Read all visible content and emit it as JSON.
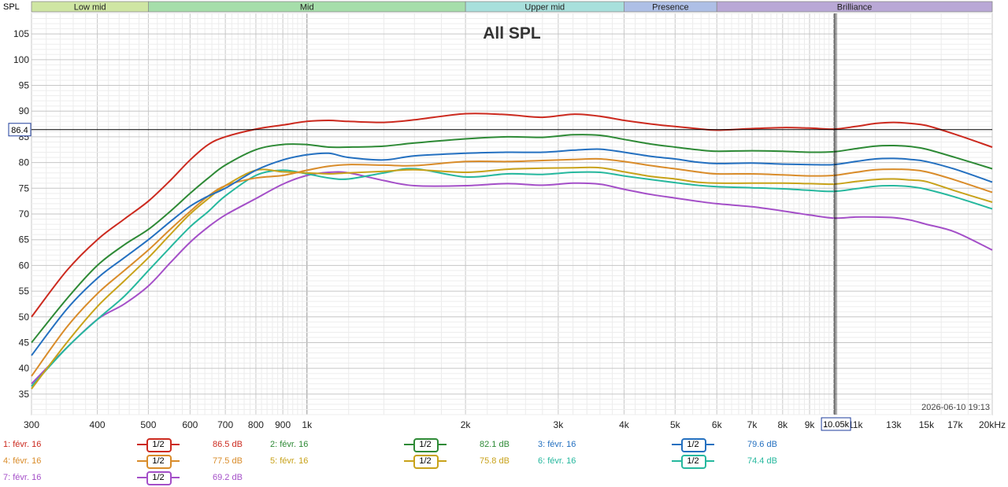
{
  "chart_data": {
    "type": "line",
    "title": "All SPL",
    "ylabel": "SPL",
    "x_scale": "log",
    "xlim": [
      300,
      20000
    ],
    "ylim": [
      31,
      109
    ],
    "y_ticks": [
      35,
      40,
      45,
      50,
      55,
      60,
      65,
      70,
      75,
      80,
      85,
      90,
      95,
      100,
      105
    ],
    "x_ticks": [
      {
        "v": 300,
        "label": "300"
      },
      {
        "v": 400,
        "label": "400"
      },
      {
        "v": 500,
        "label": "500"
      },
      {
        "v": 600,
        "label": "600"
      },
      {
        "v": 700,
        "label": "700"
      },
      {
        "v": 800,
        "label": "800"
      },
      {
        "v": 900,
        "label": "900"
      },
      {
        "v": 1000,
        "label": "1k"
      },
      {
        "v": 2000,
        "label": "2k"
      },
      {
        "v": 3000,
        "label": "3k"
      },
      {
        "v": 4000,
        "label": "4k"
      },
      {
        "v": 5000,
        "label": "5k"
      },
      {
        "v": 6000,
        "label": "6k"
      },
      {
        "v": 7000,
        "label": "7k"
      },
      {
        "v": 8000,
        "label": "8k"
      },
      {
        "v": 9000,
        "label": "9k"
      },
      {
        "v": 11000,
        "label": "11k"
      },
      {
        "v": 13000,
        "label": "13k"
      },
      {
        "v": 15000,
        "label": "15k"
      },
      {
        "v": 17000,
        "label": "17k"
      },
      {
        "v": 20000,
        "label": "20kHz"
      }
    ],
    "bands": [
      {
        "name": "Low mid",
        "from": 300,
        "to": 500,
        "color": "#cfe6a3"
      },
      {
        "name": "Mid",
        "from": 500,
        "to": 2000,
        "color": "#a6deaa"
      },
      {
        "name": "Upper mid",
        "from": 2000,
        "to": 4000,
        "color": "#a8e0dc"
      },
      {
        "name": "Presence",
        "from": 4000,
        "to": 6000,
        "color": "#aebfe6"
      },
      {
        "name": "Brilliance",
        "from": 6000,
        "to": 20000,
        "color": "#b9a8d6"
      }
    ],
    "cursor": {
      "x": 10050,
      "x_label": "10.05k",
      "y": 86.4,
      "y_label": "86.4"
    },
    "timestamp": "2026-06-10 19:13",
    "series": [
      {
        "name": "1: févr. 16",
        "color": "#cc2a1f",
        "value_label": "86.5 dB",
        "smoothing": "1/2",
        "x": [
          300,
          350,
          400,
          450,
          500,
          550,
          600,
          650,
          700,
          800,
          900,
          1000,
          1100,
          1200,
          1400,
          1600,
          2000,
          2400,
          2800,
          3200,
          3600,
          4000,
          4500,
          5000,
          5500,
          6000,
          7000,
          8000,
          9000,
          10000,
          11000,
          12000,
          13000,
          14000,
          15000,
          17000,
          20000
        ],
        "y": [
          50,
          59,
          65,
          69,
          72.5,
          76.5,
          80.5,
          83.5,
          85,
          86.5,
          87.3,
          88,
          88.2,
          88,
          87.8,
          88.3,
          89.5,
          89.3,
          88.8,
          89.4,
          89,
          88.2,
          87.5,
          87,
          86.6,
          86.3,
          86.6,
          86.8,
          86.7,
          86.5,
          87,
          87.6,
          87.8,
          87.6,
          87.2,
          85.5,
          83
        ]
      },
      {
        "name": "2: févr. 16",
        "color": "#2e8a36",
        "value_label": "82.1 dB",
        "smoothing": "1/2",
        "x": [
          300,
          350,
          400,
          450,
          500,
          550,
          600,
          650,
          700,
          800,
          900,
          1000,
          1100,
          1200,
          1400,
          1600,
          2000,
          2400,
          2800,
          3200,
          3600,
          4000,
          4500,
          5000,
          5500,
          6000,
          7000,
          8000,
          9000,
          10000,
          11000,
          12000,
          13000,
          14000,
          15000,
          17000,
          20000
        ],
        "y": [
          45,
          53.5,
          60,
          64,
          67,
          70.5,
          74,
          77,
          79.5,
          82.5,
          83.5,
          83.5,
          83,
          83,
          83.2,
          83.8,
          84.6,
          85,
          84.9,
          85.4,
          85.3,
          84.5,
          83.6,
          83,
          82.5,
          82.2,
          82.3,
          82.2,
          82,
          82.1,
          82.7,
          83.2,
          83.3,
          83.1,
          82.6,
          81,
          78.8
        ]
      },
      {
        "name": "3: févr. 16",
        "color": "#2470c0",
        "value_label": "79.6 dB",
        "smoothing": "1/2",
        "x": [
          300,
          350,
          400,
          450,
          500,
          550,
          600,
          650,
          700,
          800,
          900,
          1000,
          1100,
          1200,
          1400,
          1600,
          2000,
          2400,
          2800,
          3200,
          3600,
          4000,
          4500,
          5000,
          5500,
          6000,
          7000,
          8000,
          9000,
          10000,
          11000,
          12000,
          13000,
          14000,
          15000,
          17000,
          20000
        ],
        "y": [
          42.5,
          51.5,
          57.5,
          61.5,
          65,
          68.5,
          71.5,
          73.5,
          75,
          78.5,
          80.5,
          81.5,
          81.8,
          81,
          80.5,
          81.3,
          81.8,
          82,
          82,
          82.4,
          82.6,
          82,
          81.2,
          80.7,
          80.1,
          79.8,
          79.9,
          79.7,
          79.6,
          79.6,
          80.2,
          80.7,
          80.8,
          80.6,
          80.2,
          78.7,
          76.2
        ]
      },
      {
        "name": "4: févr. 16",
        "color": "#d98c2a",
        "value_label": "77.5 dB",
        "smoothing": "1/2",
        "x": [
          300,
          350,
          400,
          450,
          500,
          550,
          600,
          650,
          700,
          800,
          900,
          1000,
          1100,
          1200,
          1400,
          1600,
          2000,
          2400,
          2800,
          3200,
          3600,
          4000,
          4500,
          5000,
          5500,
          6000,
          7000,
          8000,
          9000,
          10000,
          11000,
          12000,
          13000,
          14000,
          15000,
          17000,
          20000
        ],
        "y": [
          38.5,
          48,
          54.5,
          59,
          63,
          67,
          70.5,
          73.5,
          75.5,
          77,
          77.5,
          78.5,
          79.3,
          79.6,
          79.5,
          79.4,
          80.2,
          80.2,
          80.4,
          80.6,
          80.7,
          80.2,
          79.4,
          78.8,
          78.2,
          77.8,
          77.8,
          77.6,
          77.4,
          77.5,
          78.1,
          78.6,
          78.7,
          78.6,
          78.2,
          76.6,
          74.2
        ]
      },
      {
        "name": "5: févr. 16",
        "color": "#c8a21a",
        "value_label": "75.8 dB",
        "smoothing": "1/2",
        "x": [
          300,
          350,
          400,
          450,
          500,
          550,
          600,
          650,
          700,
          800,
          900,
          1000,
          1100,
          1200,
          1400,
          1600,
          2000,
          2400,
          2800,
          3200,
          3600,
          4000,
          4500,
          5000,
          5500,
          6000,
          7000,
          8000,
          9000,
          10000,
          11000,
          12000,
          13000,
          14000,
          15000,
          17000,
          20000
        ],
        "y": [
          36,
          45,
          52,
          57,
          61.5,
          66,
          70,
          73,
          75.5,
          78.5,
          78.2,
          78,
          77.8,
          78,
          78.3,
          78.6,
          78.1,
          78.7,
          78.9,
          79,
          79,
          78.2,
          77.3,
          76.8,
          76.2,
          76,
          76,
          76,
          75.9,
          75.8,
          76.3,
          76.7,
          76.8,
          76.6,
          76.3,
          74.5,
          72.3
        ]
      },
      {
        "name": "6: févr. 16",
        "color": "#26b89e",
        "value_label": "74.4 dB",
        "smoothing": "1/2",
        "x": [
          300,
          350,
          400,
          450,
          500,
          550,
          600,
          650,
          700,
          800,
          900,
          1000,
          1100,
          1200,
          1400,
          1600,
          2000,
          2400,
          2800,
          3200,
          3600,
          4000,
          4500,
          5000,
          5500,
          6000,
          7000,
          8000,
          9000,
          10000,
          11000,
          12000,
          13000,
          14000,
          15000,
          17000,
          20000
        ],
        "y": [
          36.5,
          44,
          49.5,
          54,
          59,
          63.5,
          67.5,
          70.5,
          73.5,
          77.5,
          78.5,
          77.8,
          77,
          76.8,
          78,
          78.8,
          77.2,
          77.8,
          77.7,
          78.1,
          78.1,
          77.4,
          76.7,
          76.1,
          75.6,
          75.3,
          75.1,
          74.9,
          74.6,
          74.4,
          74.9,
          75.4,
          75.5,
          75.3,
          74.8,
          73.3,
          71
        ]
      },
      {
        "name": "7: févr. 16",
        "color": "#a44fc8",
        "value_label": "69.2 dB",
        "smoothing": "1/2",
        "x": [
          300,
          350,
          400,
          450,
          500,
          550,
          600,
          650,
          700,
          800,
          900,
          1000,
          1100,
          1200,
          1400,
          1600,
          2000,
          2400,
          2800,
          3200,
          3600,
          4000,
          4500,
          5000,
          5500,
          6000,
          7000,
          8000,
          9000,
          10000,
          11000,
          12000,
          13000,
          14000,
          15000,
          17000,
          20000
        ],
        "y": [
          37,
          44,
          49.5,
          52.5,
          56,
          60.5,
          64.5,
          67.5,
          69.8,
          73,
          75.8,
          77.5,
          78.1,
          78,
          76.5,
          75.5,
          75.5,
          75.9,
          75.6,
          76,
          75.8,
          74.8,
          73.8,
          73.1,
          72.5,
          72,
          71.4,
          70.6,
          69.8,
          69.2,
          69.4,
          69.4,
          69.3,
          68.8,
          68,
          66.5,
          63
        ]
      }
    ]
  }
}
